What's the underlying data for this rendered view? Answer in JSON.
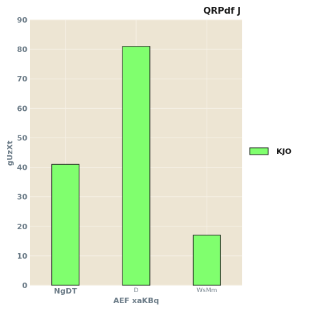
{
  "chart_data": {
    "type": "bar",
    "title": "QRPdf J",
    "xlabel": "AEF xaKBq",
    "ylabel": "gUzXt",
    "categories": [
      "NgDT",
      "D",
      "WsMm"
    ],
    "series": [
      {
        "name": "KJO",
        "values": [
          41,
          81,
          17
        ]
      }
    ],
    "ylim": [
      0,
      90
    ],
    "yticks": [
      0,
      10,
      20,
      30,
      40,
      50,
      60,
      70,
      80,
      90
    ],
    "grid": true,
    "legend_position": "right",
    "colors": {
      "background": "#ede5d3",
      "bar_fill": "#80ff6e",
      "bar_stroke": "#1a1a1a",
      "grid": "#f6f1e6"
    }
  }
}
